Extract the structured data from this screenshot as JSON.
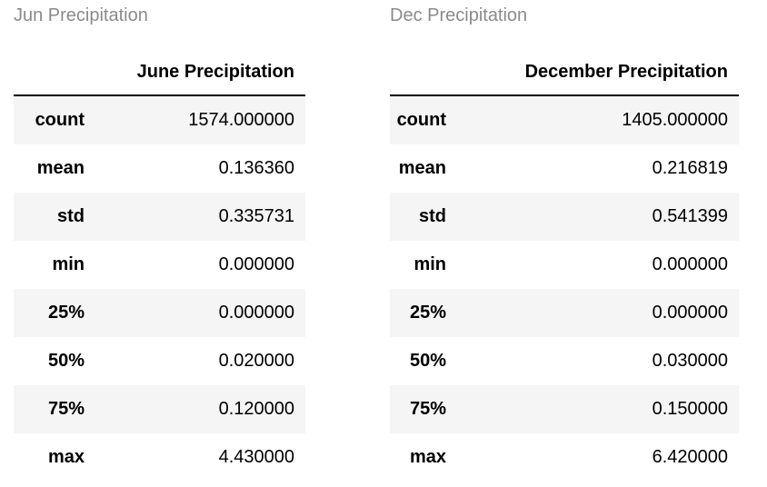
{
  "panels": [
    {
      "title": "Jun Precipitation",
      "column_header": "June Precipitation",
      "rows": [
        {
          "label": "count",
          "value": "1574.000000"
        },
        {
          "label": "mean",
          "value": "0.136360"
        },
        {
          "label": "std",
          "value": "0.335731"
        },
        {
          "label": "min",
          "value": "0.000000"
        },
        {
          "label": "25%",
          "value": "0.000000"
        },
        {
          "label": "50%",
          "value": "0.020000"
        },
        {
          "label": "75%",
          "value": "0.120000"
        },
        {
          "label": "max",
          "value": "4.430000"
        }
      ]
    },
    {
      "title": "Dec Precipitation",
      "column_header": "December Precipitation",
      "rows": [
        {
          "label": "count",
          "value": "1405.000000"
        },
        {
          "label": "mean",
          "value": "0.216819"
        },
        {
          "label": "std",
          "value": "0.541399"
        },
        {
          "label": "min",
          "value": "0.000000"
        },
        {
          "label": "25%",
          "value": "0.000000"
        },
        {
          "label": "50%",
          "value": "0.030000"
        },
        {
          "label": "75%",
          "value": "0.150000"
        },
        {
          "label": "max",
          "value": "6.420000"
        }
      ]
    }
  ],
  "colors": {
    "title": "#8a8a8a",
    "stripe": "#f5f5f5",
    "text": "#000000"
  }
}
